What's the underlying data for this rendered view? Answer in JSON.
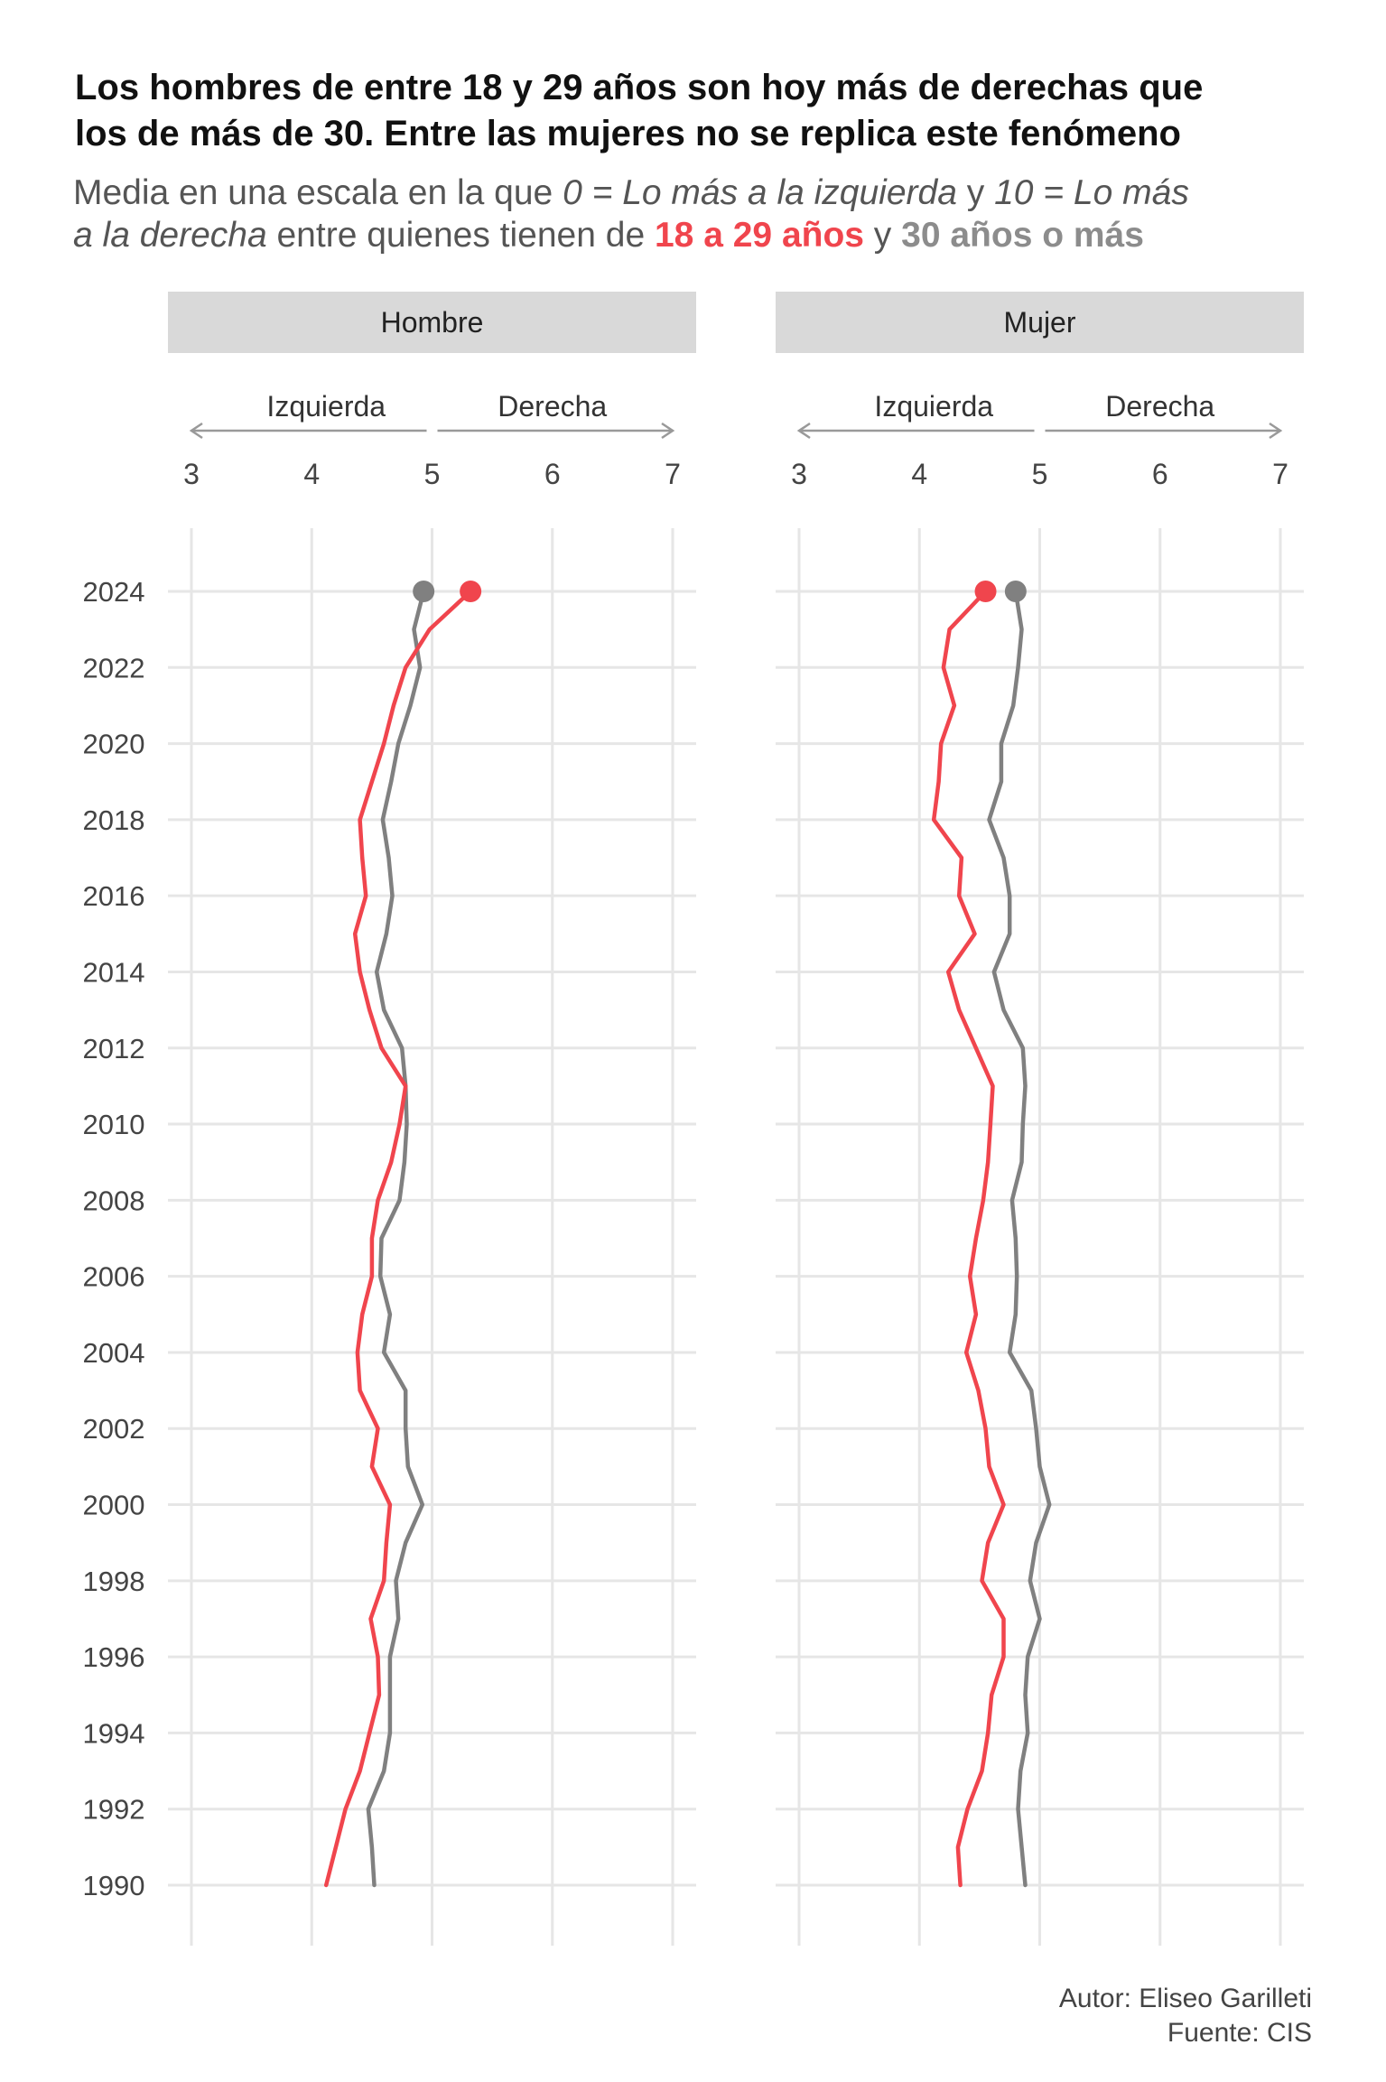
{
  "title_lines": [
    "Los hombres de entre 18 y 29 años son hoy más de derechas que",
    "los de más de 30. Entre las mujeres no se replica este fenómeno"
  ],
  "subtitle": {
    "line1_a": "Media en una escala en la que ",
    "line1_b": "0 = Lo más a la izquierda",
    "line1_c": " y ",
    "line1_d": "10 = Lo más",
    "line2_a": "a la derecha",
    "line2_b": " entre quienes tienen de ",
    "line2_c": "18 a 29 años",
    "line2_d": " y ",
    "line2_e": "30 años o más"
  },
  "colors": {
    "young": "#f0454d",
    "old": "#808080",
    "facet_strip": "#d9d9d9",
    "grid": "#e6e6e6"
  },
  "direction_labels": {
    "left": "Izquierda",
    "right": "Derecha"
  },
  "caption": {
    "author": "Autor: Eliseo Garilleti",
    "source": "Fuente: CIS"
  },
  "chart_data": {
    "type": "line",
    "x_ticks": [
      3,
      4,
      5,
      6,
      7
    ],
    "xlim": [
      3,
      7
    ],
    "y_ticks": [
      1990,
      1992,
      1994,
      1996,
      1998,
      2000,
      2002,
      2004,
      2006,
      2008,
      2010,
      2012,
      2014,
      2016,
      2018,
      2020,
      2022,
      2024
    ],
    "ylim": [
      1990,
      2024
    ],
    "years": [
      1990,
      1991,
      1992,
      1993,
      1994,
      1995,
      1996,
      1997,
      1998,
      1999,
      2000,
      2001,
      2002,
      2003,
      2004,
      2005,
      2006,
      2007,
      2008,
      2009,
      2010,
      2011,
      2012,
      2013,
      2014,
      2015,
      2016,
      2017,
      2018,
      2019,
      2020,
      2021,
      2022,
      2023,
      2024
    ],
    "facets": [
      {
        "name": "Hombre",
        "series": [
          {
            "name": "30 años o más",
            "color": "#808080",
            "values": [
              4.52,
              4.5,
              4.47,
              4.6,
              4.65,
              4.65,
              4.65,
              4.72,
              4.7,
              4.78,
              4.92,
              4.8,
              4.78,
              4.78,
              4.6,
              4.65,
              4.57,
              4.58,
              4.73,
              4.77,
              4.79,
              4.78,
              4.75,
              4.6,
              4.54,
              4.62,
              4.67,
              4.64,
              4.59,
              4.66,
              4.72,
              4.82,
              4.9,
              4.85,
              4.93
            ]
          },
          {
            "name": "18 a 29 años",
            "color": "#f0454d",
            "values": [
              4.12,
              4.2,
              4.28,
              4.4,
              4.48,
              4.56,
              4.55,
              4.49,
              4.6,
              4.62,
              4.65,
              4.5,
              4.55,
              4.4,
              4.38,
              4.42,
              4.5,
              4.5,
              4.55,
              4.66,
              4.73,
              4.78,
              4.58,
              4.48,
              4.4,
              4.36,
              4.45,
              4.42,
              4.4,
              4.5,
              4.6,
              4.68,
              4.78,
              4.98,
              5.32
            ]
          }
        ]
      },
      {
        "name": "Mujer",
        "series": [
          {
            "name": "30 años o más",
            "color": "#808080",
            "values": [
              4.88,
              4.85,
              4.82,
              4.84,
              4.9,
              4.88,
              4.9,
              5.0,
              4.92,
              4.97,
              5.08,
              5.0,
              4.97,
              4.93,
              4.75,
              4.8,
              4.81,
              4.8,
              4.77,
              4.85,
              4.86,
              4.88,
              4.86,
              4.7,
              4.62,
              4.75,
              4.75,
              4.7,
              4.58,
              4.68,
              4.68,
              4.78,
              4.82,
              4.85,
              4.8
            ]
          },
          {
            "name": "18 a 29 años",
            "color": "#f0454d",
            "values": [
              4.34,
              4.32,
              4.4,
              4.52,
              4.57,
              4.6,
              4.7,
              4.7,
              4.52,
              4.57,
              4.7,
              4.58,
              4.55,
              4.49,
              4.39,
              4.47,
              4.42,
              4.47,
              4.53,
              4.57,
              4.59,
              4.61,
              4.47,
              4.33,
              4.24,
              4.46,
              4.33,
              4.35,
              4.12,
              4.16,
              4.18,
              4.29,
              4.2,
              4.25,
              4.55
            ]
          }
        ]
      }
    ]
  }
}
